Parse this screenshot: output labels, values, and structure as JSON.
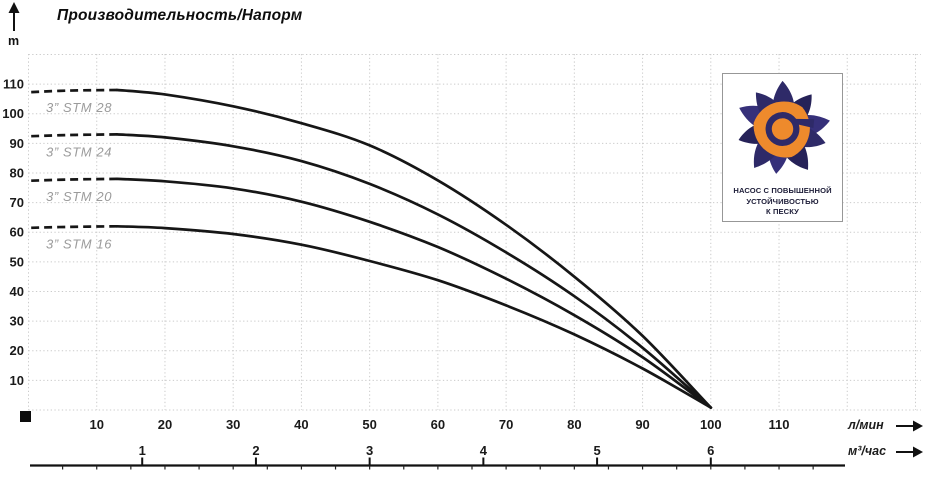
{
  "header": {
    "title_note": "see chart_data.title"
  },
  "badge": {
    "line1": "НАСОС С ПОВЫШЕННОЙ",
    "line2": "УСТОЙЧИВОСТЬЮ",
    "line3": "К ПЕСКУ"
  },
  "colors": {
    "curve": "#161616",
    "grid": "#cbcbcb",
    "tick_label": "#1a1a1a",
    "curve_label": "#9b9b9b",
    "logo_navy": "#2e2a68",
    "logo_navy_dark": "#262258",
    "logo_navy_light": "#36307a",
    "logo_orange": "#ee8a2c",
    "badge_border": "#979797"
  },
  "chart_data": {
    "type": "line",
    "title": "Производительность/Напорм",
    "ylabel": "m",
    "ylim": [
      0,
      120
    ],
    "grid": "dotted",
    "y_ticks": [
      10,
      20,
      30,
      40,
      50,
      60,
      70,
      80,
      90,
      100,
      110
    ],
    "x_axes": [
      {
        "label": "л/мин",
        "ticks": [
          10,
          20,
          30,
          40,
          50,
          60,
          70,
          80,
          90,
          100,
          110
        ],
        "lim": [
          0,
          130
        ]
      },
      {
        "label": "м³/час",
        "ticks": [
          1,
          2,
          3,
          4,
          5,
          6
        ],
        "lmin_per_unit": 16.6667
      }
    ],
    "convergence_point": {
      "q_lmin": 100,
      "head_m": 0.8
    },
    "series": [
      {
        "name": "3” STM 28",
        "max_head_m": 108,
        "dashed": [
          [
            0.4,
            107.3
          ],
          [
            6,
            107.8
          ],
          [
            13,
            108
          ]
        ],
        "points": [
          [
            13,
            108
          ],
          [
            20,
            106.5
          ],
          [
            30,
            102.5
          ],
          [
            40,
            96.8
          ],
          [
            50,
            89.3
          ],
          [
            60,
            77.5
          ],
          [
            70,
            62.5
          ],
          [
            80,
            45
          ],
          [
            90,
            25
          ],
          [
            100,
            0.8
          ]
        ]
      },
      {
        "name": "3” STM 24",
        "max_head_m": 93,
        "dashed": [
          [
            0.4,
            92.4
          ],
          [
            6,
            92.8
          ],
          [
            13,
            93
          ]
        ],
        "points": [
          [
            13,
            93
          ],
          [
            20,
            92
          ],
          [
            30,
            89
          ],
          [
            40,
            84
          ],
          [
            50,
            76.3
          ],
          [
            60,
            66
          ],
          [
            70,
            53.2
          ],
          [
            80,
            38.4
          ],
          [
            90,
            21
          ],
          [
            100,
            0.8
          ]
        ]
      },
      {
        "name": "3” STM 20",
        "max_head_m": 78,
        "dashed": [
          [
            0.4,
            77.4
          ],
          [
            6,
            77.8
          ],
          [
            13,
            78
          ]
        ],
        "points": [
          [
            13,
            78
          ],
          [
            20,
            77.2
          ],
          [
            30,
            74.8
          ],
          [
            40,
            70.3
          ],
          [
            50,
            63.5
          ],
          [
            60,
            55
          ],
          [
            70,
            44.3
          ],
          [
            80,
            32
          ],
          [
            90,
            17.8
          ],
          [
            100,
            0.8
          ]
        ]
      },
      {
        "name": "3” STM 16",
        "max_head_m": 62,
        "dashed": [
          [
            0.4,
            61.5
          ],
          [
            6,
            61.8
          ],
          [
            13,
            62
          ]
        ],
        "points": [
          [
            13,
            62
          ],
          [
            20,
            61.4
          ],
          [
            30,
            59.4
          ],
          [
            40,
            55.8
          ],
          [
            50,
            50.3
          ],
          [
            60,
            43.8
          ],
          [
            70,
            35.3
          ],
          [
            80,
            25.5
          ],
          [
            90,
            14
          ],
          [
            100,
            0.8
          ]
        ]
      }
    ]
  }
}
